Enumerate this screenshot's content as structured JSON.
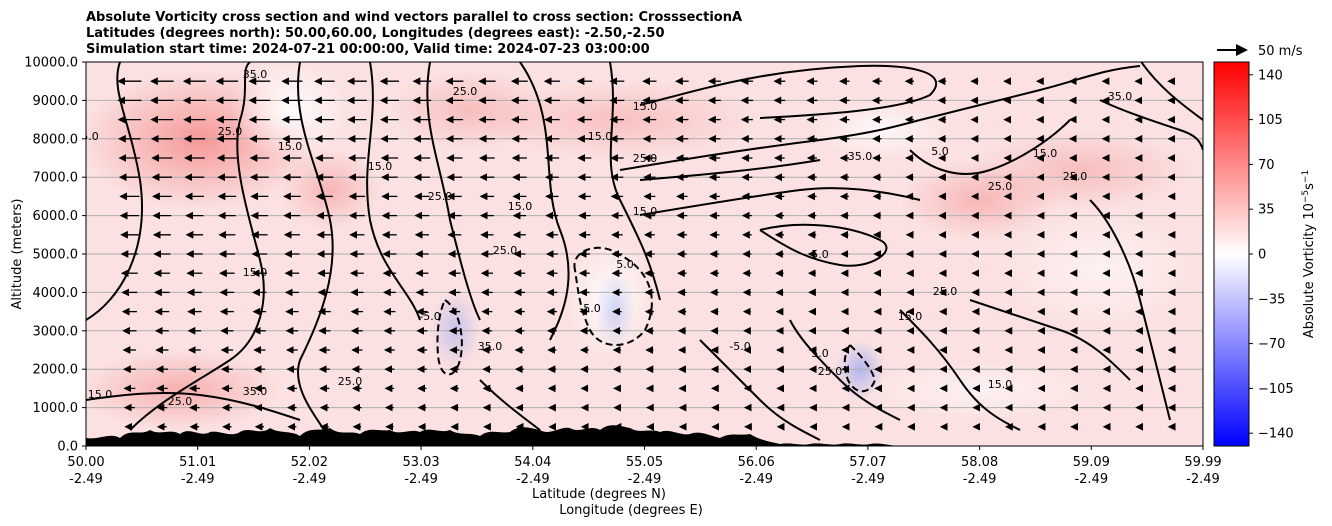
{
  "chart_data": {
    "type": "contour",
    "title_lines": [
      "Absolute Vorticity cross section and wind vectors parallel to cross section: CrosssectionA",
      "Latitudes (degrees north): 50.00,60.00, Longitudes (degrees east): -2.50,-2.50",
      "Simulation start time: 2024-07-21 00:00:00, Valid time: 2024-07-23 03:00:00"
    ],
    "ylabel": "Altitude (meters)",
    "xlabel_line1": "Latitude (degrees N)",
    "xlabel_line2": "Longitude (degrees E)",
    "ylim": [
      0,
      10000
    ],
    "y_ticks": [
      "0.0",
      "1000.0",
      "2000.0",
      "3000.0",
      "4000.0",
      "5000.0",
      "6000.0",
      "7000.0",
      "8000.0",
      "9000.0",
      "10000.0"
    ],
    "x_ticks": [
      {
        "lat": "50.00",
        "lon": "-2.49"
      },
      {
        "lat": "51.01",
        "lon": "-2.49"
      },
      {
        "lat": "52.02",
        "lon": "-2.49"
      },
      {
        "lat": "53.03",
        "lon": "-2.49"
      },
      {
        "lat": "54.04",
        "lon": "-2.49"
      },
      {
        "lat": "55.05",
        "lon": "-2.49"
      },
      {
        "lat": "56.06",
        "lon": "-2.49"
      },
      {
        "lat": "57.07",
        "lon": "-2.49"
      },
      {
        "lat": "58.08",
        "lon": "-2.49"
      },
      {
        "lat": "59.09",
        "lon": "-2.49"
      },
      {
        "lat": "59.99",
        "lon": "-2.49"
      }
    ],
    "colorbar": {
      "label": "Absolute Vorticity 10$^{-5}$s$^{-1}$",
      "label_main": "Absolute Vorticity 10",
      "label_exp1": "−5",
      "label_mid": "s",
      "label_exp2": "−1",
      "range": [
        -150,
        150
      ],
      "ticks": [
        "140",
        "105",
        "70",
        "35",
        "0",
        "−35",
        "−70",
        "−105",
        "−140"
      ],
      "colors": [
        "#0000ff",
        "#ffffff",
        "#ff0000"
      ]
    },
    "quiver_key": {
      "label": "50 m/s"
    },
    "grid": true,
    "contour_labels": [
      "35.0",
      "25.0",
      "15.0",
      "5.0",
      "-5.0"
    ]
  }
}
